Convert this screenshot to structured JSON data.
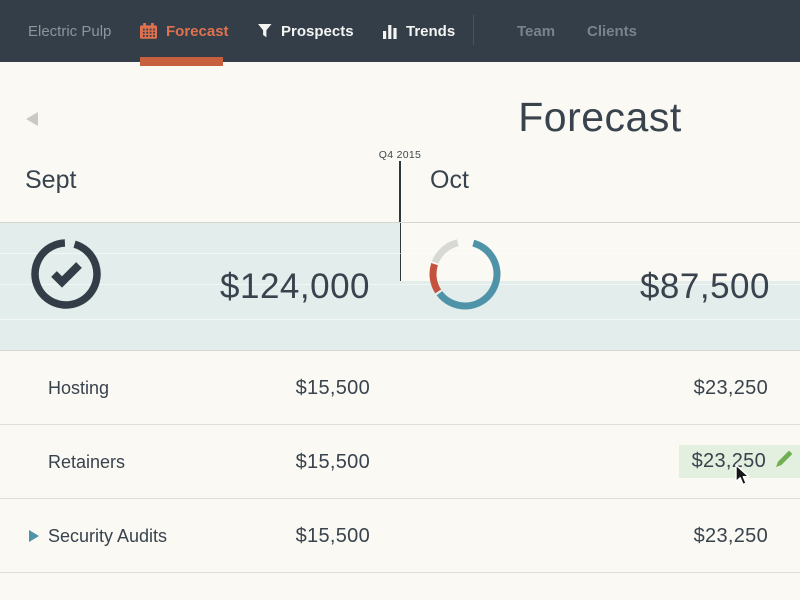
{
  "nav": {
    "brand": "Electric Pulp",
    "items": [
      {
        "label": "Forecast",
        "icon": "calendar-icon",
        "active": true
      },
      {
        "label": "Prospects",
        "icon": "funnel-icon",
        "active": false
      },
      {
        "label": "Trends",
        "icon": "bar-chart-icon",
        "active": false
      },
      {
        "label": "Team",
        "icon": null,
        "active": false
      },
      {
        "label": "Clients",
        "icon": null,
        "active": false
      }
    ]
  },
  "header": {
    "title": "Forecast",
    "quarter": "Q4 2015"
  },
  "columns": [
    {
      "label": "Sept"
    },
    {
      "label": "Oct"
    }
  ],
  "summary": {
    "sept": {
      "amount": "$124,000",
      "status": "complete",
      "ring": {
        "stroke_width": 7.5,
        "segments": [
          {
            "start": 16,
            "end": 358,
            "color": "#323d47"
          }
        ]
      }
    },
    "oct": {
      "amount": "$87,500",
      "status": "in-progress",
      "fill_percent": 54,
      "donut": {
        "stroke_width": 7,
        "segments": [
          {
            "start": 15,
            "end": 233,
            "color": "#4f93a8"
          },
          {
            "start": 237,
            "end": 288,
            "color": "#c5523c"
          },
          {
            "start": 291,
            "end": 347,
            "color": "#d8d8d5"
          }
        ]
      }
    }
  },
  "rows": [
    {
      "label": "Hosting",
      "sept": "$15,500",
      "oct": "$23,250",
      "expandable": false,
      "editing": false
    },
    {
      "label": "Retainers",
      "sept": "$15,500",
      "oct": "$23,250",
      "expandable": false,
      "editing": true
    },
    {
      "label": "Security Audits",
      "sept": "$15,500",
      "oct": "$23,250",
      "expandable": true,
      "editing": false
    }
  ],
  "colors": {
    "nav_bg": "#333e48",
    "accent_orange": "#e0714f",
    "tab_underline": "#c7603f",
    "page_bg": "#faf9f4",
    "summary_fill_blue": "#e2edec",
    "dark_text": "#39434d",
    "teal": "#4f93a8",
    "donut_red": "#c5523c",
    "donut_gray": "#d8d8d5",
    "edit_highlight_green": "#e3efdf",
    "pencil_green": "#6fb152"
  }
}
